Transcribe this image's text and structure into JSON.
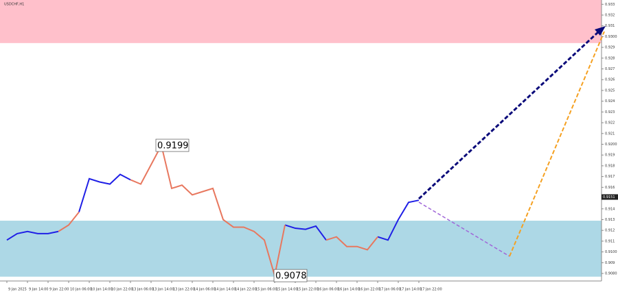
{
  "chart_data": {
    "type": "line",
    "title": "USDCHF,H1",
    "categories": [
      "9 Jan 2025",
      null,
      "9 Jan 14:00",
      null,
      "9 Jan 22:00",
      null,
      "10 Jan 06:00",
      null,
      "10 Jan 14:00",
      null,
      "10 Jan 22:00",
      null,
      "13 Jan 06:00",
      null,
      "13 Jan 14:00",
      null,
      "13 Jan 22:00",
      null,
      "14 Jan 06:00",
      null,
      "14 Jan 14:00",
      null,
      "14 Jan 22:00",
      null,
      "15 Jan 06:00",
      null,
      "15 Jan 14:00",
      null,
      "15 Jan 22:00",
      null,
      "16 Jan 06:00",
      null,
      "16 Jan 14:00",
      null,
      "16 Jan 22:00",
      null,
      "17 Jan 06:00",
      null,
      "17 Jan 14:00",
      null,
      "17 Jan 22:00"
    ],
    "series": [
      {
        "color": "#1f1fe6",
        "values": [
          0.9111,
          0.9117,
          0.9119,
          0.9117,
          0.9117,
          0.9119,
          null,
          0.9137,
          0.9168,
          0.9165,
          0.9163,
          0.9172,
          0.9167,
          null,
          null,
          null,
          null,
          null,
          null,
          null,
          null,
          null,
          null,
          null,
          null,
          null,
          null,
          0.9125,
          0.9122,
          0.9121,
          0.9124,
          0.9111,
          null,
          null,
          null,
          null,
          0.9114,
          0.9111,
          0.913,
          0.9146,
          0.9148
        ]
      },
      {
        "color": "#e8775e",
        "values": [
          null,
          null,
          null,
          null,
          null,
          0.9119,
          0.9125,
          0.9137,
          null,
          null,
          null,
          null,
          0.9167,
          0.9163,
          0.9181,
          0.9199,
          0.9159,
          0.9162,
          0.9153,
          0.9156,
          0.9159,
          0.913,
          0.9123,
          0.9123,
          0.9119,
          0.9111,
          0.9078,
          0.9125,
          null,
          null,
          null,
          0.9111,
          0.9114,
          0.9105,
          0.9105,
          0.9102,
          0.9114,
          null,
          null,
          null,
          null
        ]
      }
    ],
    "zones": [
      {
        "color": "#ffc0cb",
        "range": [
          0.9294,
          0.9334
        ]
      },
      {
        "color": "#add8e6",
        "range": [
          0.9077,
          0.9129
        ]
      }
    ],
    "annotations": [
      0.9199,
      0.9078
    ],
    "current_price": 0.9151,
    "ylim": [
      0.9073,
      0.9334
    ],
    "yticks": [
      {
        "value": 0.908,
        "label": "0.9080"
      },
      0.909,
      {
        "value": 0.91,
        "label": "0.9100"
      },
      0.911,
      0.912,
      0.913,
      0.914,
      0.915,
      0.916,
      0.917,
      0.918,
      0.919,
      {
        "value": 0.92,
        "label": "0.9200"
      },
      0.921,
      0.922,
      0.923,
      0.924,
      0.925,
      0.926,
      0.927,
      0.928,
      0.929,
      {
        "value": 0.93,
        "label": "0.9300"
      },
      0.931,
      0.932,
      0.933
    ]
  }
}
